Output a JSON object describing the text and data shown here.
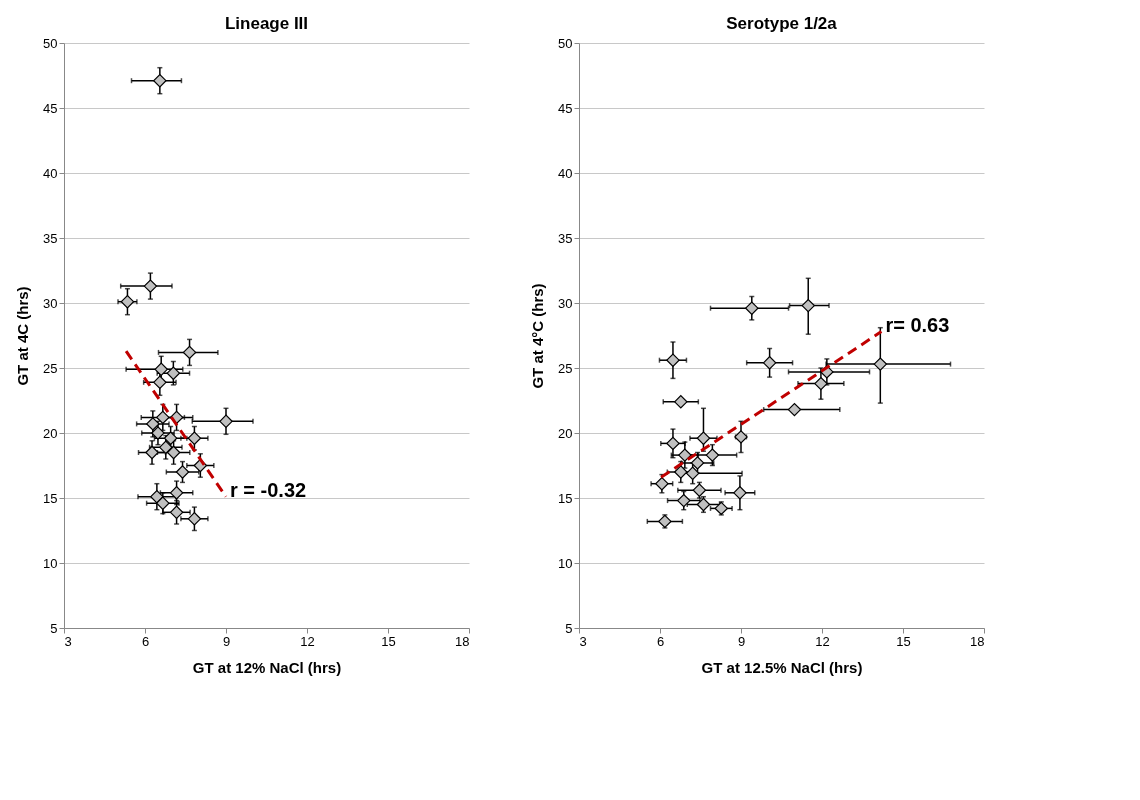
{
  "chart_data": [
    {
      "type": "scatter",
      "title": "Lineage III",
      "xlabel": "GT at 12% NaCl (hrs)",
      "ylabel": "GT at 4C (hrs)",
      "xlim": [
        3,
        18
      ],
      "xticks": [
        3,
        6,
        9,
        12,
        15,
        18
      ],
      "ylim": [
        5,
        50
      ],
      "yticks": [
        5,
        10,
        15,
        20,
        25,
        30,
        35,
        40,
        45,
        50
      ],
      "grid": "y",
      "series": [
        {
          "color": "#c0c0c0",
          "marker": "diamond",
          "x": [
            6.55,
            6.2,
            5.35,
            7.65,
            6.6,
            7.05,
            6.55,
            9.0,
            7.17,
            6.66,
            6.29,
            6.48,
            6.95,
            7.83,
            6.77,
            6.26,
            7.06,
            8.05,
            7.39,
            7.17,
            6.44,
            6.66,
            7.17,
            7.83
          ],
          "values": [
            47.1,
            31.3,
            30.1,
            26.2,
            24.9,
            24.6,
            23.9,
            20.9,
            21.2,
            21.2,
            20.7,
            20.0,
            19.6,
            19.6,
            18.9,
            18.5,
            18.5,
            17.5,
            17.0,
            15.4,
            15.1,
            14.6,
            13.9,
            13.4
          ],
          "xerrors": [
            [
              5.5,
              7.35
            ],
            [
              5.1,
              7.0
            ],
            0.35,
            [
              6.5,
              8.7
            ],
            [
              5.3,
              7.4
            ],
            0.6,
            0.6,
            [
              7.75,
              10.0
            ],
            0.6,
            0.8,
            0.6,
            0.6,
            0.6,
            0.5,
            0.6,
            0.5,
            0.6,
            0.5,
            0.6,
            0.6,
            0.7,
            0.6,
            0.5,
            0.5
          ],
          "errors": [
            1.0,
            1.0,
            1.0,
            1.0,
            1.0,
            0.9,
            1.0,
            1.0,
            1.0,
            1.0,
            1.0,
            0.9,
            0.9,
            0.9,
            0.9,
            0.9,
            0.9,
            0.9,
            0.8,
            0.9,
            1.0,
            0.8,
            0.9,
            0.9
          ]
        },
        {
          "type": "line",
          "color": "#c00000",
          "line_style": "dashed",
          "x": [
            5.3,
            9.0
          ],
          "values": [
            26.3,
            15.1
          ]
        }
      ],
      "annotations": [
        "r = -0.32"
      ]
    },
    {
      "type": "scatter",
      "title": "Serotype 1/2a",
      "xlabel": "GT at 12.5% NaCl (hrs)",
      "ylabel": "GT at 4°C (hrs)",
      "xlim": [
        3,
        18
      ],
      "xticks": [
        3,
        6,
        9,
        12,
        15,
        18
      ],
      "ylim": [
        5,
        50
      ],
      "yticks": [
        5,
        10,
        15,
        20,
        25,
        30,
        35,
        40,
        45,
        50
      ],
      "grid": "y",
      "series": [
        {
          "color": "#c0c0c0",
          "marker": "diamond",
          "x": [
            9.4,
            11.49,
            6.48,
            10.06,
            14.16,
            12.18,
            11.96,
            6.77,
            10.98,
            7.61,
            9.0,
            6.48,
            6.92,
            7.94,
            7.39,
            6.77,
            7.21,
            6.07,
            7.46,
            8.96,
            6.88,
            7.61,
            8.27,
            6.18
          ],
          "values": [
            29.6,
            29.8,
            25.6,
            25.4,
            25.3,
            24.7,
            23.8,
            22.4,
            21.8,
            19.6,
            19.7,
            19.2,
            18.3,
            18.3,
            17.7,
            17.0,
            16.9,
            16.1,
            15.6,
            15.4,
            14.8,
            14.5,
            14.2,
            13.2
          ],
          "xerrors": [
            [
              7.87,
              10.76
            ],
            [
              10.8,
              12.26
            ],
            0.5,
            0.85,
            [
              12.15,
              16.76
            ],
            [
              10.76,
              13.76
            ],
            0.85,
            0.65,
            [
              9.84,
              12.66
            ],
            0.5,
            0.2,
            0.45,
            0.5,
            0.9,
            0.6,
            0.5,
            [
              6.7,
              9.04
            ],
            0.4,
            0.8,
            0.55,
            0.6,
            0.6,
            0.4,
            0.65
          ],
          "errors": [
            0.9,
            [
              27.6,
              31.9
            ],
            1.4,
            1.1,
            [
              22.3,
              28.1
            ],
            1.0,
            1.2,
            0.2,
            0.2,
            [
              18.6,
              21.9
            ],
            1.2,
            1.1,
            1.0,
            0.8,
            0.8,
            0.8,
            0.8,
            0.7,
            0.6,
            1.3,
            0.7,
            0.6,
            0.5,
            0.5
          ]
        },
        {
          "type": "line",
          "color": "#c00000",
          "line_style": "dashed",
          "x": [
            6.04,
            14.2
          ],
          "values": [
            16.6,
            27.8
          ]
        }
      ],
      "annotations": [
        "r= 0.63"
      ]
    }
  ]
}
